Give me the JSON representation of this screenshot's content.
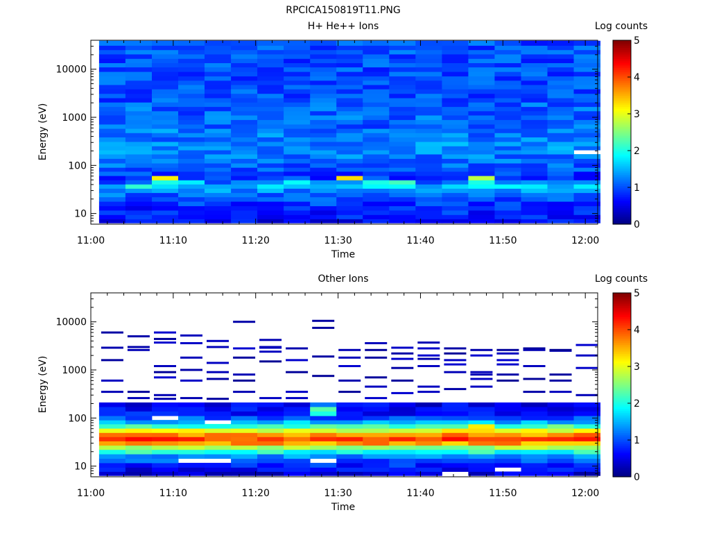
{
  "figure_title": "RPCICA150819T11.PNG",
  "colorscale": {
    "stops": [
      "#00007f",
      "#0000ff",
      "#0080ff",
      "#00ffff",
      "#80ff80",
      "#ffff00",
      "#ff8000",
      "#ff0000",
      "#7f0000"
    ]
  },
  "chart_data": [
    {
      "type": "heatmap",
      "title": "H+ He++ Ions",
      "xlabel": "Time",
      "ylabel": "Energy (eV)",
      "colorbar_label": "Log counts",
      "y_scale": "log",
      "xlim": [
        "11:00",
        "12:01.5"
      ],
      "ylim": [
        6,
        40000
      ],
      "x_ticks": [
        "11:00",
        "11:10",
        "11:20",
        "11:30",
        "11:40",
        "11:50",
        "12:00"
      ],
      "y_ticks": [
        "10",
        "100",
        "1000",
        "10000"
      ],
      "clim": [
        0,
        5
      ],
      "cbar_ticks": [
        "0",
        "1",
        "2",
        "3",
        "4",
        "5"
      ],
      "time_bins_start": [
        "11:01",
        "11:04.2",
        "11:07.4",
        "11:10.6",
        "11:13.8",
        "11:17",
        "11:20.2",
        "11:23.4",
        "11:26.6",
        "11:29.8",
        "11:33",
        "11:36.2",
        "11:39.4",
        "11:42.6",
        "11:45.8",
        "11:49",
        "11:52.2",
        "11:55.4",
        "11:58.6"
      ],
      "time_bin_minutes": 3.2,
      "energy_bins_eV": [
        7,
        8.5,
        10.5,
        13,
        16,
        20,
        24.5,
        30,
        37,
        45,
        55,
        68,
        83,
        100,
        125,
        155,
        190,
        230,
        280,
        350,
        430,
        530,
        650,
        800,
        1000,
        1230,
        1500,
        1850,
        2300,
        2800,
        3500,
        4300,
        5300,
        6500,
        8000,
        10000,
        12300,
        15000,
        18500,
        23000,
        28000,
        35000
      ],
      "background_level_by_energy": [
        0.6,
        0.7,
        0.8,
        0.8,
        0.9,
        1.0,
        1.1,
        1.3,
        1.6,
        1.1,
        0.9,
        0.9,
        1.0,
        1.1,
        1.2,
        1.2,
        1.3,
        1.3,
        1.3,
        1.2,
        1.2,
        1.2,
        1.1,
        1.1,
        1.1,
        1.1,
        1.1,
        1.1,
        1.0,
        1.0,
        1.0,
        1.0,
        1.0,
        1.0,
        1.0,
        1.0,
        1.0,
        1.0,
        1.0,
        1.0,
        1.0,
        1.0
      ],
      "peaks": [
        {
          "t": "11:07.4",
          "e_eV": 55,
          "level": 3.2
        },
        {
          "t": "11:07.4",
          "e_eV": 45,
          "level": 2.0
        },
        {
          "t": "11:04.2",
          "e_eV": 37,
          "level": 2.1
        },
        {
          "t": "11:10.6",
          "e_eV": 45,
          "level": 1.8
        },
        {
          "t": "11:23.4",
          "e_eV": 45,
          "level": 1.9
        },
        {
          "t": "11:29.8",
          "e_eV": 55,
          "level": 3.3
        },
        {
          "t": "11:33",
          "e_eV": 45,
          "level": 2.0
        },
        {
          "t": "11:36.2",
          "e_eV": 45,
          "level": 2.2
        },
        {
          "t": "11:36.2",
          "e_eV": 37,
          "level": 1.9
        },
        {
          "t": "11:45.8",
          "e_eV": 55,
          "level": 2.8
        },
        {
          "t": "11:45.8",
          "e_eV": 45,
          "level": 2.0
        },
        {
          "t": "11:42.6",
          "e_eV": 37,
          "level": 1.7
        }
      ],
      "empty_cells": [
        {
          "t": "11:58.6",
          "e_eV": 190
        }
      ]
    },
    {
      "type": "heatmap",
      "title": "Other Ions",
      "xlabel": "Time",
      "ylabel": "Energy (eV)",
      "colorbar_label": "Log counts",
      "y_scale": "log",
      "xlim": [
        "11:00",
        "12:01.5"
      ],
      "ylim": [
        6,
        40000
      ],
      "x_ticks": [
        "11:00",
        "11:10",
        "11:20",
        "11:30",
        "11:40",
        "11:50",
        "12:00"
      ],
      "y_ticks": [
        "10",
        "100",
        "1000",
        "10000"
      ],
      "clim": [
        0,
        5
      ],
      "cbar_ticks": [
        "0",
        "1",
        "2",
        "3",
        "4",
        "5"
      ],
      "time_bins_start": [
        "11:01",
        "11:04.2",
        "11:07.4",
        "11:10.6",
        "11:13.8",
        "11:17",
        "11:20.2",
        "11:23.4",
        "11:26.6",
        "11:29.8",
        "11:33",
        "11:36.2",
        "11:39.4",
        "11:42.6",
        "11:45.8",
        "11:49",
        "11:52.2",
        "11:55.4",
        "11:58.6"
      ],
      "time_bin_minutes": 3.2,
      "energy_bins_eV": [
        7,
        8.5,
        10.5,
        13,
        16,
        20,
        24.5,
        30,
        37,
        45,
        55,
        68,
        83,
        100,
        125,
        155,
        190
      ],
      "level_by_energy": [
        0.4,
        0.6,
        0.8,
        1.0,
        1.3,
        2.0,
        2.7,
        3.6,
        4.1,
        3.7,
        3.0,
        2.2,
        1.5,
        1.0,
        0.7,
        0.6,
        0.5
      ],
      "peaks": [
        {
          "t": "11:26.6",
          "e_eV": 250,
          "level": 2.0
        },
        {
          "t": "11:26.6",
          "e_eV": 155,
          "level": 2.3
        },
        {
          "t": "11:26.6",
          "e_eV": 125,
          "level": 2.0
        },
        {
          "t": "11:26.6",
          "e_eV": 350,
          "level": 1.4
        },
        {
          "t": "11:26.6",
          "e_eV": 430,
          "level": 1.2
        },
        {
          "t": "11:45.8",
          "e_eV": 68,
          "level": 3.2
        }
      ],
      "empty_cells": [
        {
          "t": "11:07.4",
          "e_eV": 100
        },
        {
          "t": "11:13.8",
          "e_eV": 83
        },
        {
          "t": "11:10.6",
          "e_eV": 13
        },
        {
          "t": "11:13.8",
          "e_eV": 13
        },
        {
          "t": "11:26.6",
          "e_eV": 13
        },
        {
          "t": "11:42.6",
          "e_eV": 7
        },
        {
          "t": "11:49",
          "e_eV": 8.5
        }
      ],
      "sparse_lines_eV": [
        {
          "t": "11:01",
          "e_eV": [
            1600,
            600,
            350,
            2900,
            6000
          ]
        },
        {
          "t": "11:04.2",
          "e_eV": [
            2600,
            5000,
            3000,
            260,
            350
          ]
        },
        {
          "t": "11:07.4",
          "e_eV": [
            3700,
            6000,
            4400,
            1200,
            900,
            700,
            300,
            250
          ]
        },
        {
          "t": "11:10.6",
          "e_eV": [
            1800,
            5200,
            3600,
            1000,
            600,
            260
          ]
        },
        {
          "t": "11:13.8",
          "e_eV": [
            4000,
            3000,
            1400,
            900,
            650,
            250
          ]
        },
        {
          "t": "11:17",
          "e_eV": [
            2800,
            10000,
            1800,
            800,
            600,
            350
          ]
        },
        {
          "t": "11:20.2",
          "e_eV": [
            2900,
            4200,
            3000,
            2400,
            1500,
            260
          ]
        },
        {
          "t": "11:23.4",
          "e_eV": [
            2800,
            1600,
            900,
            350,
            260
          ]
        },
        {
          "t": "11:26.6",
          "e_eV": [
            10500,
            7500,
            1900,
            750
          ]
        },
        {
          "t": "11:29.8",
          "e_eV": [
            2600,
            1800,
            1200,
            600,
            350
          ]
        },
        {
          "t": "11:33",
          "e_eV": [
            3600,
            2600,
            1800,
            700,
            450,
            260
          ]
        },
        {
          "t": "11:36.2",
          "e_eV": [
            2900,
            2200,
            1700,
            1100,
            600,
            330
          ]
        },
        {
          "t": "11:39.4",
          "e_eV": [
            3700,
            2800,
            2000,
            1700,
            1200,
            450,
            350
          ]
        },
        {
          "t": "11:42.6",
          "e_eV": [
            2800,
            2200,
            1600,
            1300,
            900,
            400
          ]
        },
        {
          "t": "11:45.8",
          "e_eV": [
            2600,
            2000,
            900,
            800,
            650,
            450
          ]
        },
        {
          "t": "11:49",
          "e_eV": [
            2600,
            2200,
            1600,
            1300,
            800,
            600
          ]
        },
        {
          "t": "11:52.2",
          "e_eV": [
            2800,
            2600,
            1200,
            650,
            350
          ]
        },
        {
          "t": "11:55.4",
          "e_eV": [
            2500,
            2600,
            800,
            600,
            350
          ]
        },
        {
          "t": "11:58.6",
          "e_eV": [
            3300,
            2000,
            1100,
            300
          ]
        }
      ]
    }
  ]
}
